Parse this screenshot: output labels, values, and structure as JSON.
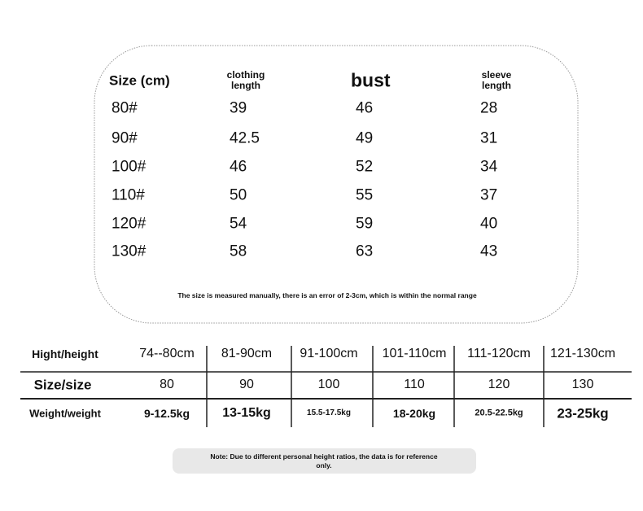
{
  "size_chart": {
    "headers": [
      "Size (cm)",
      "clothing length",
      "bust",
      "sleeve length"
    ],
    "rows": [
      [
        "80#",
        "39",
        "46",
        "28"
      ],
      [
        "90#",
        "42.5",
        "49",
        "31"
      ],
      [
        "100#",
        "46",
        "52",
        "34"
      ],
      [
        "110#",
        "50",
        "55",
        "37"
      ],
      [
        "120#",
        "54",
        "59",
        "40"
      ],
      [
        "130#",
        "58",
        "63",
        "43"
      ]
    ],
    "note": "The size is measured manually, there is an error of 2-3cm, which is within the normal range"
  },
  "height_table": {
    "rows": [
      [
        "Hight/height",
        "74--80cm",
        "81-90cm",
        "91-100cm",
        "101-110cm",
        "111-120cm",
        "121-130cm"
      ],
      [
        "Size/size",
        "80",
        "90",
        "100",
        "110",
        "120",
        "130"
      ],
      [
        "Weight/weight",
        "9-12.5kg",
        "13-15kg",
        "15.5-17.5kg",
        "18-20kg",
        "20.5-22.5kg",
        "23-25kg"
      ]
    ]
  },
  "footer_note": "Note: Due to different personal height ratios, the data is for reference only."
}
